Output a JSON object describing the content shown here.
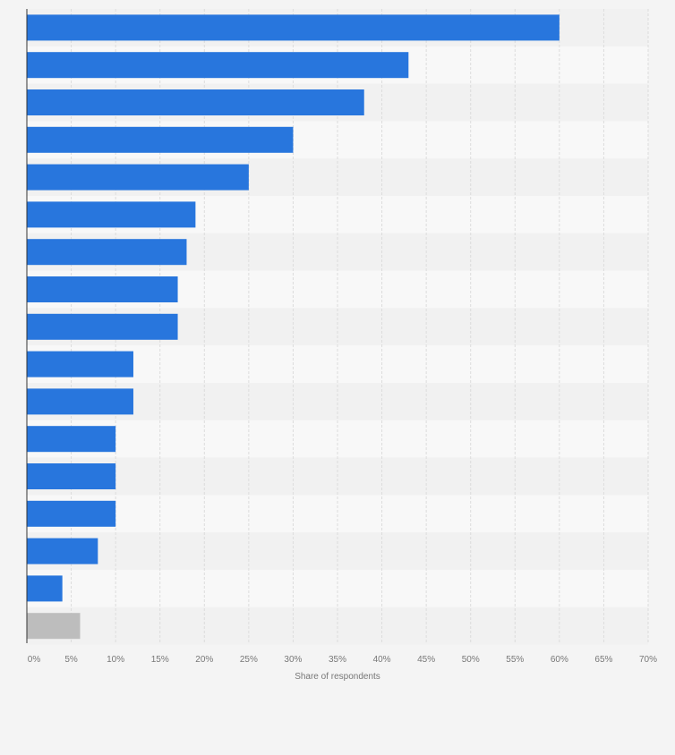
{
  "chart_data": {
    "type": "bar",
    "orientation": "horizontal",
    "xlabel": "Share of respondents",
    "ylabel": "",
    "xlim": [
      0,
      70
    ],
    "ticks": [
      "0%",
      "5%",
      "10%",
      "15%",
      "20%",
      "25%",
      "30%",
      "35%",
      "40%",
      "45%",
      "50%",
      "55%",
      "60%",
      "65%",
      "70%"
    ],
    "tick_values": [
      0,
      5,
      10,
      15,
      20,
      25,
      30,
      35,
      40,
      45,
      50,
      55,
      60,
      65,
      70
    ],
    "values": [
      60,
      43,
      38,
      30,
      25,
      19,
      18,
      17,
      17,
      12,
      12,
      10,
      10,
      10,
      8,
      4,
      6
    ],
    "bar_colors": [
      "#2876dd",
      "#2876dd",
      "#2876dd",
      "#2876dd",
      "#2876dd",
      "#2876dd",
      "#2876dd",
      "#2876dd",
      "#2876dd",
      "#2876dd",
      "#2876dd",
      "#2876dd",
      "#2876dd",
      "#2876dd",
      "#2876dd",
      "#2876dd",
      "#bdbdbd"
    ],
    "grid": true,
    "colors": {
      "bar": "#2876dd",
      "other_bar": "#bdbdbd",
      "band_dark": "#f1f1f1",
      "band_light": "#f8f8f8",
      "grid": "#dcdcdc",
      "axis": "#333333",
      "tick_text": "#777777"
    }
  }
}
